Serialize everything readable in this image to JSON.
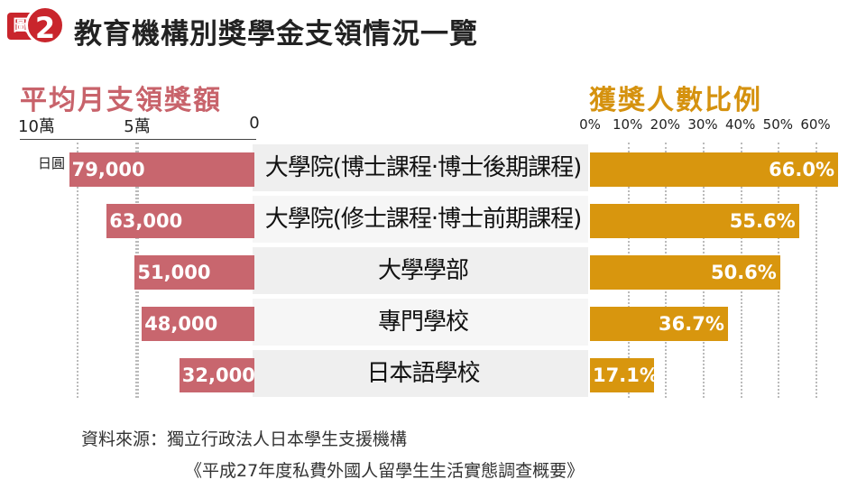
{
  "badge": {
    "box_text": "圖",
    "number": "2"
  },
  "title": "教育機構別獎學金支領情況一覽",
  "chart_data": [
    {
      "type": "bar",
      "orientation": "horizontal",
      "direction": "right-to-left",
      "title": "平均月支領獎額",
      "unit_label": "日圓",
      "categories": [
        "大學院(博士課程‧博士後期課程)",
        "大學院(修士課程‧博士前期課程)",
        "大學學部",
        "專門學校",
        "日本語學校"
      ],
      "values": [
        79000,
        63000,
        51000,
        48000,
        32000
      ],
      "value_labels": [
        "79,000",
        "63,000",
        "51,000",
        "48,000",
        "32,000"
      ],
      "xlim": [
        0,
        100000
      ],
      "ticks": [
        {
          "value": 100000,
          "label": "10萬"
        },
        {
          "value": 50000,
          "label": "5萬"
        },
        {
          "value": 0,
          "label": "0"
        }
      ],
      "color": "#c8666e",
      "grid": true
    },
    {
      "type": "bar",
      "orientation": "horizontal",
      "title": "獲獎人數比例",
      "categories": [
        "大學院(博士課程‧博士後期課程)",
        "大學院(修士課程‧博士前期課程)",
        "大學學部",
        "專門學校",
        "日本語學校"
      ],
      "values": [
        66.0,
        55.6,
        50.6,
        36.7,
        17.1
      ],
      "value_labels": [
        "66.0%",
        "55.6%",
        "50.6%",
        "36.7%",
        "17.1%"
      ],
      "xlim": [
        0,
        60
      ],
      "ticks": [
        {
          "value": 0,
          "label": "0%"
        },
        {
          "value": 10,
          "label": "10%"
        },
        {
          "value": 20,
          "label": "20%"
        },
        {
          "value": 30,
          "label": "30%"
        },
        {
          "value": 40,
          "label": "40%"
        },
        {
          "value": 50,
          "label": "50%"
        },
        {
          "value": 60,
          "label": "60%"
        }
      ],
      "color": "#d8960e",
      "grid": true
    }
  ],
  "source": {
    "line1": "資料來源：獨立行政法人日本學生支援機構",
    "line2": "《平成27年度私費外國人留學生生活實態調查概要》"
  }
}
